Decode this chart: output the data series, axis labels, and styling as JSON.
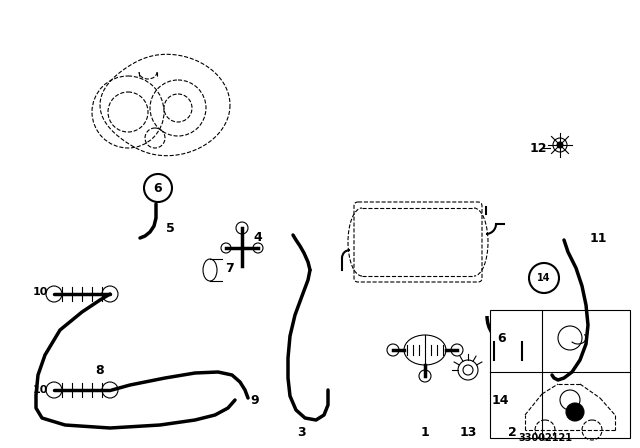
{
  "bg_color": "#ffffff",
  "line_color": "#000000",
  "diagram_code": "33002121",
  "figsize": [
    6.4,
    4.48
  ],
  "dpi": 100
}
